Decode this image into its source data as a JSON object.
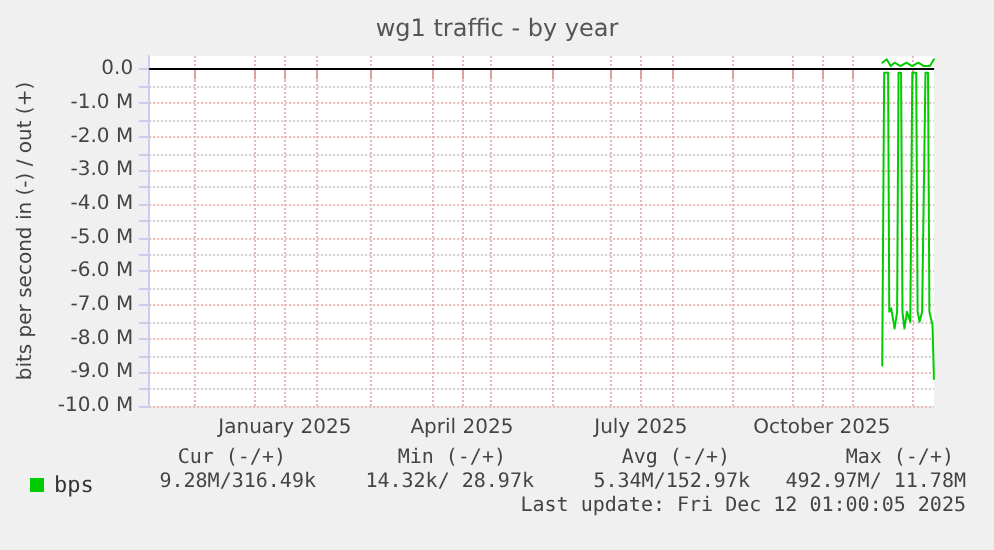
{
  "chart_data": {
    "type": "line",
    "title": "wg1 traffic - by year",
    "ylabel": "bits per second in (-) / out (+)",
    "xlim": [
      "2024-11-08",
      "2025-12-12T01:00"
    ],
    "xticks": [
      {
        "value": "2024-12-01",
        "label": null
      },
      {
        "value": "2025-01-01",
        "label": null
      },
      {
        "value": "2025-01-16",
        "label": "January 2025"
      },
      {
        "value": "2025-02-01",
        "label": null
      },
      {
        "value": "2025-03-01",
        "label": null
      },
      {
        "value": "2025-04-01",
        "label": null
      },
      {
        "value": "2025-04-16",
        "label": "April 2025"
      },
      {
        "value": "2025-05-01",
        "label": null
      },
      {
        "value": "2025-06-01",
        "label": null
      },
      {
        "value": "2025-07-01",
        "label": null
      },
      {
        "value": "2025-07-16",
        "label": "July 2025"
      },
      {
        "value": "2025-08-01",
        "label": null
      },
      {
        "value": "2025-09-01",
        "label": null
      },
      {
        "value": "2025-10-01",
        "label": null
      },
      {
        "value": "2025-10-16",
        "label": "October 2025"
      },
      {
        "value": "2025-11-01",
        "label": null
      },
      {
        "value": "2025-12-01",
        "label": null
      }
    ],
    "ylim": [
      -10,
      0.4
    ],
    "yticks": [
      {
        "value": -10,
        "label": "-10.0 M"
      },
      {
        "value": -9.5,
        "label": null
      },
      {
        "value": -9,
        "label": "-9.0 M"
      },
      {
        "value": -8.5,
        "label": null
      },
      {
        "value": -8,
        "label": "-8.0 M"
      },
      {
        "value": -7.5,
        "label": null
      },
      {
        "value": -7,
        "label": "-7.0 M"
      },
      {
        "value": -6.5,
        "label": null
      },
      {
        "value": -6,
        "label": "-6.0 M"
      },
      {
        "value": -5.5,
        "label": null
      },
      {
        "value": -5,
        "label": "-5.0 M"
      },
      {
        "value": -4.5,
        "label": null
      },
      {
        "value": -4,
        "label": "-4.0 M"
      },
      {
        "value": -3.5,
        "label": null
      },
      {
        "value": -3,
        "label": "-3.0 M"
      },
      {
        "value": -2.5,
        "label": null
      },
      {
        "value": -2,
        "label": "-2.0 M"
      },
      {
        "value": -1.5,
        "label": null
      },
      {
        "value": -1,
        "label": "-1.0 M"
      },
      {
        "value": -0.5,
        "label": null
      },
      {
        "value": 0,
        "label": "0.0"
      }
    ],
    "grid": true,
    "legend": "bottom left",
    "marker": "none",
    "line_style": "solid",
    "ref_lines": [
      {
        "axis": "y",
        "value": 0,
        "label": null,
        "color": "#000000"
      }
    ],
    "series": [
      {
        "name": "bps",
        "color": "#00cc00",
        "x": [
          "2025-11-15T17:00",
          "2025-11-16T17:00",
          "2025-11-18T17:00",
          "2025-11-19T07:00",
          "2025-11-20T07:00",
          "2025-11-22T00:00",
          "2025-11-23T07:00",
          "2025-11-24T00:00",
          "2025-11-25T07:00",
          "2025-11-26T00:00",
          "2025-11-27T00:00",
          "2025-11-28T07:00",
          "2025-11-30T00:00",
          "2025-12-01T00:00",
          "2025-12-03T00:00",
          "2025-12-03T17:00",
          "2025-12-04T17:00",
          "2025-12-06T00:00",
          "2025-12-07T17:00",
          "2025-12-09T00:00",
          "2025-12-09T17:00",
          "2025-12-11T07:00",
          "2025-12-12T00:00"
        ],
        "values": [
          -8.8,
          -0.1,
          -0.1,
          -7.2,
          -7.1,
          -7.7,
          -7.2,
          -0.1,
          -0.1,
          -7.2,
          -7.7,
          -7.2,
          -7.5,
          -0.1,
          -0.1,
          -7.2,
          -7.5,
          -7.2,
          -0.1,
          -0.1,
          -7.2,
          -7.6,
          -9.2
        ]
      },
      {
        "color": "#00cc00",
        "x": [
          "2025-11-15T17:00",
          "2025-11-18T00:00",
          "2025-11-20T00:00",
          "2025-11-22T00:00",
          "2025-11-25T00:00",
          "2025-11-28T00:00",
          "2025-12-01T00:00",
          "2025-12-04T00:00",
          "2025-12-07T00:00",
          "2025-12-10T00:00",
          "2025-12-12T00:00"
        ],
        "values": [
          0.2,
          0.3,
          0.1,
          0.2,
          0.1,
          0.2,
          0.1,
          0.2,
          0.1,
          0.1,
          0.3
        ]
      }
    ],
    "annotations": [
      "Cur (-/+)",
      "Min (-/+)",
      "Avg (-/+)",
      "Max (-/+)",
      "9.28M/316.49k",
      "14.32k/ 28.97k",
      "5.34M/152.97k",
      "492.97M/ 11.78M",
      "Last update: Fri Dec 12 01:00:05 2025"
    ]
  }
}
